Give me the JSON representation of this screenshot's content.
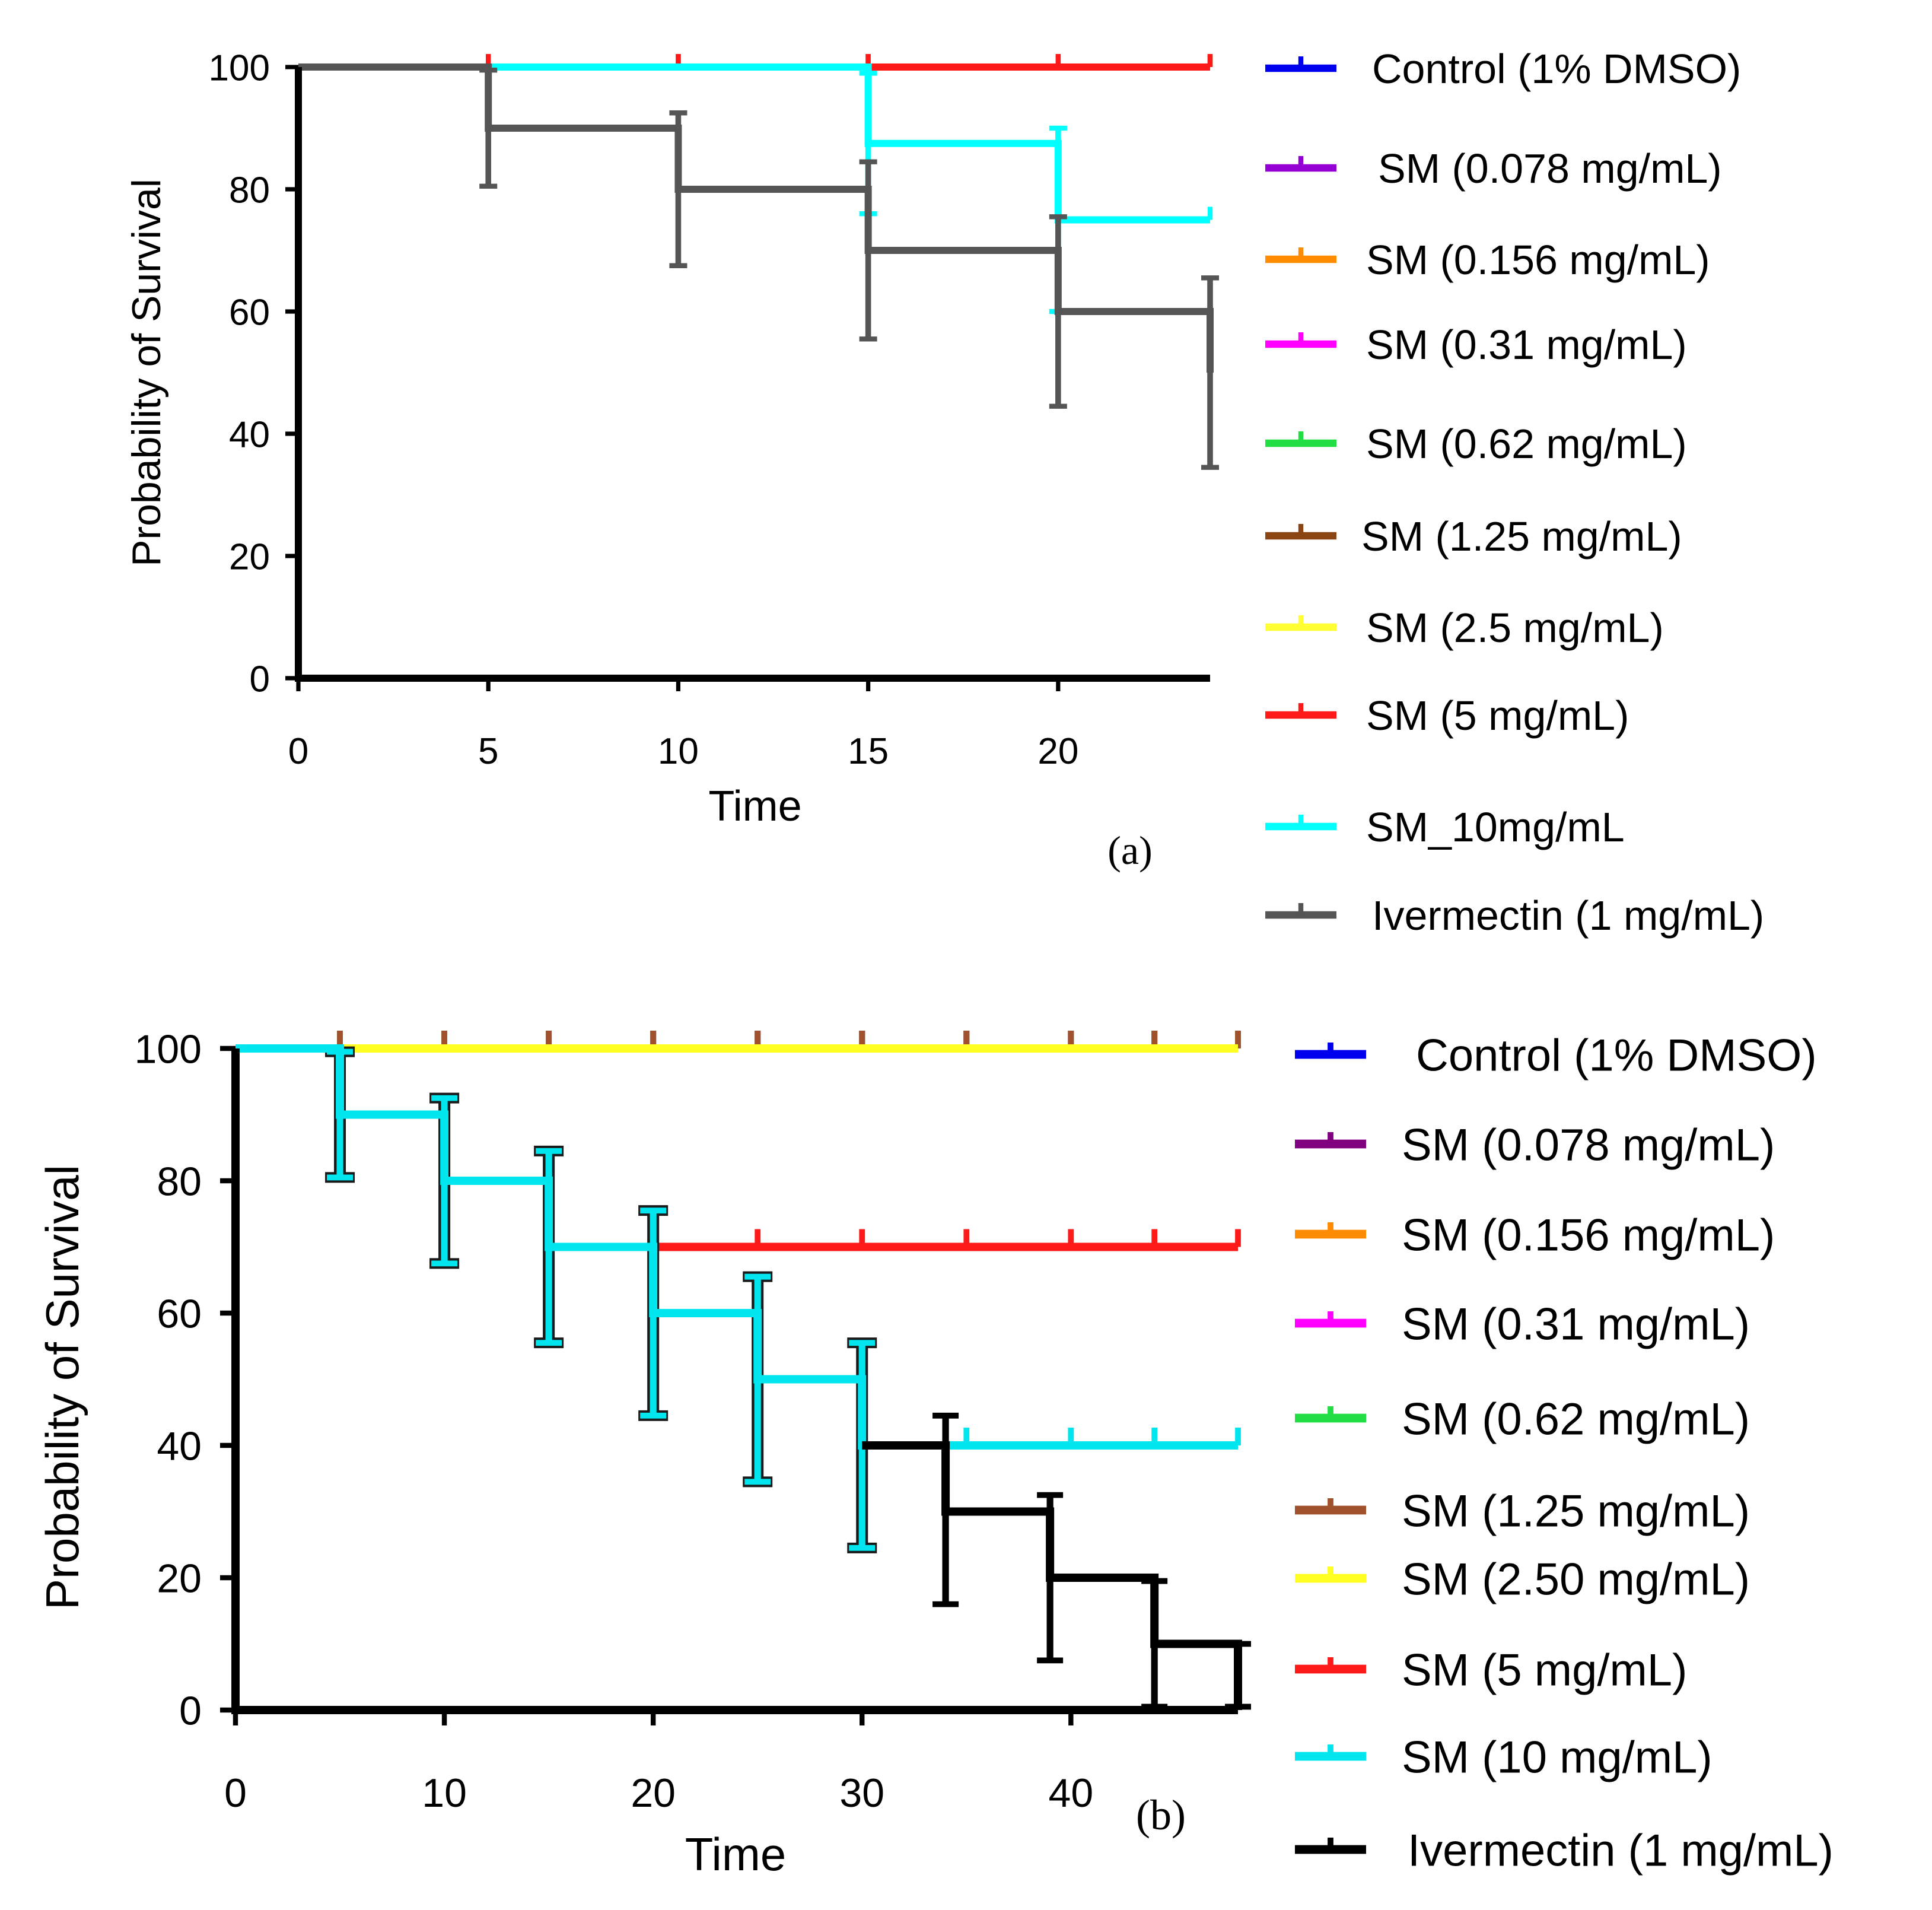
{
  "chart_data": [
    {
      "type": "line",
      "subtype": "kaplan-meier-step",
      "panel_label": "(a)",
      "xlabel": "Time",
      "ylabel": "Probability of Survival",
      "xlim": [
        0,
        24
      ],
      "ylim": [
        0,
        100
      ],
      "xticks": [
        0,
        5,
        10,
        15,
        20
      ],
      "yticks": [
        0,
        20,
        40,
        60,
        80,
        100
      ],
      "grid": false,
      "legend_position": "right",
      "series": [
        {
          "name": "Control (1% DMSO)",
          "color": "#0000ee",
          "x": [
            0,
            24
          ],
          "y": [
            100,
            100
          ],
          "censor_times": [
            5,
            10,
            15,
            20,
            24
          ]
        },
        {
          "name": "SM (0.078 mg/mL)",
          "color": "#9400d3",
          "x": [
            0,
            24
          ],
          "y": [
            100,
            100
          ],
          "censor_times": [
            5,
            10,
            15,
            20,
            24
          ]
        },
        {
          "name": "SM (0.156 mg/mL)",
          "color": "#ff8c00",
          "x": [
            0,
            24
          ],
          "y": [
            100,
            100
          ],
          "censor_times": [
            5,
            10,
            15,
            20,
            24
          ]
        },
        {
          "name": "SM (0.31 mg/mL)",
          "color": "#ff00ff",
          "x": [
            0,
            24
          ],
          "y": [
            100,
            100
          ],
          "censor_times": [
            5,
            10,
            15,
            20,
            24
          ]
        },
        {
          "name": "SM (0.62 mg/mL)",
          "color": "#22dd44",
          "x": [
            0,
            24
          ],
          "y": [
            100,
            100
          ],
          "censor_times": [
            5,
            10,
            15,
            20,
            24
          ]
        },
        {
          "name": "SM (1.25 mg/mL)",
          "color": "#8b4513",
          "x": [
            0,
            24
          ],
          "y": [
            100,
            100
          ],
          "censor_times": [
            5,
            10,
            15,
            20,
            24
          ]
        },
        {
          "name": "SM (2.5 mg/mL)",
          "color": "#ffff33",
          "x": [
            0,
            24
          ],
          "y": [
            100,
            100
          ],
          "censor_times": [
            5,
            10,
            15,
            20,
            24
          ]
        },
        {
          "name": "SM (5 mg/mL)",
          "color": "#ff1a1a",
          "x": [
            0,
            24
          ],
          "y": [
            100,
            100
          ],
          "censor_times": [
            5,
            10,
            15,
            20,
            24
          ]
        },
        {
          "name": "SM_10mg/mL",
          "color": "#00ffff",
          "x": [
            0,
            15,
            20,
            24
          ],
          "y": [
            100,
            87.5,
            75,
            75
          ],
          "error_bars": [
            {
              "x": 15,
              "low": 76,
              "high": 99
            },
            {
              "x": 20,
              "low": 60,
              "high": 90
            }
          ],
          "censor_times": [
            24
          ]
        },
        {
          "name": "Ivermectin (1 mg/mL)",
          "color": "#555555",
          "x": [
            0,
            5,
            10,
            15,
            20,
            24
          ],
          "y": [
            100,
            90,
            80,
            70,
            60,
            50
          ],
          "error_bars": [
            {
              "x": 5,
              "low": 80.5,
              "high": 99.5
            },
            {
              "x": 10,
              "low": 67.5,
              "high": 92.5
            },
            {
              "x": 15,
              "low": 55.5,
              "high": 84.5
            },
            {
              "x": 20,
              "low": 44.5,
              "high": 75.5
            },
            {
              "x": 24,
              "low": 34.5,
              "high": 65.5
            }
          ]
        }
      ]
    },
    {
      "type": "line",
      "subtype": "kaplan-meier-step",
      "panel_label": "(b)",
      "xlabel": "Time",
      "ylabel": "Probability of Survival",
      "xlim": [
        0,
        48
      ],
      "ylim": [
        0,
        100
      ],
      "xticks": [
        0,
        10,
        20,
        30,
        40
      ],
      "yticks": [
        0,
        20,
        40,
        60,
        80,
        100
      ],
      "grid": false,
      "legend_position": "right",
      "series": [
        {
          "name": "Control (1% DMSO)",
          "color": "#0000ee",
          "x": [
            0,
            48
          ],
          "y": [
            100,
            100
          ],
          "censor_times": [
            5,
            10,
            15,
            20,
            25,
            30,
            35,
            40,
            44,
            48
          ]
        },
        {
          "name": "SM (0.078 mg/mL)",
          "color": "#800080",
          "x": [
            0,
            48
          ],
          "y": [
            100,
            100
          ],
          "censor_times": [
            5,
            10,
            15,
            20,
            25,
            30,
            35,
            40,
            44,
            48
          ]
        },
        {
          "name": "SM (0.156 mg/mL)",
          "color": "#ff8c00",
          "x": [
            0,
            48
          ],
          "y": [
            100,
            100
          ],
          "censor_times": [
            5,
            10,
            15,
            20,
            25,
            30,
            35,
            40,
            44,
            48
          ]
        },
        {
          "name": "SM (0.31 mg/mL)",
          "color": "#ff00ff",
          "x": [
            0,
            48
          ],
          "y": [
            100,
            100
          ],
          "censor_times": [
            5,
            10,
            15,
            20,
            25,
            30,
            35,
            40,
            44,
            48
          ]
        },
        {
          "name": "SM (0.62 mg/mL)",
          "color": "#22dd44",
          "x": [
            0,
            48
          ],
          "y": [
            100,
            100
          ],
          "censor_times": [
            5,
            10,
            15,
            20,
            25,
            30,
            35,
            40,
            44,
            48
          ]
        },
        {
          "name": "SM (1.25 mg/mL)",
          "color": "#a0522d",
          "x": [
            0,
            48
          ],
          "y": [
            100,
            100
          ],
          "censor_times": [
            5,
            10,
            15,
            20,
            25,
            30,
            35,
            40,
            44,
            48
          ]
        },
        {
          "name": "SM (2.50 mg/mL)",
          "color": "#ffff22",
          "x": [
            0,
            48
          ],
          "y": [
            100,
            100
          ],
          "censor_times": []
        },
        {
          "name": "SM (5 mg/mL)",
          "color": "#ff1a1a",
          "x": [
            0,
            5,
            10,
            15,
            20,
            48
          ],
          "y": [
            100,
            90,
            80,
            70,
            70,
            70
          ],
          "error_bars": [
            {
              "x": 5,
              "low": 80.5,
              "high": 99.5
            },
            {
              "x": 10,
              "low": 67.5,
              "high": 92.5
            },
            {
              "x": 15,
              "low": 55.5,
              "high": 84.5
            }
          ],
          "censor_times": [
            25,
            30,
            35,
            40,
            44,
            48
          ]
        },
        {
          "name": "SM (10 mg/mL)",
          "color": "#00e5ee",
          "x": [
            0,
            5,
            10,
            15,
            20,
            25,
            30,
            48
          ],
          "y": [
            100,
            90,
            80,
            70,
            60,
            50,
            40,
            40
          ],
          "error_bars": [
            {
              "x": 5,
              "low": 80.5,
              "high": 99.5
            },
            {
              "x": 10,
              "low": 67.5,
              "high": 92.5
            },
            {
              "x": 15,
              "low": 55.5,
              "high": 84.5
            },
            {
              "x": 20,
              "low": 44.5,
              "high": 75.5
            },
            {
              "x": 25,
              "low": 34.5,
              "high": 65.5
            },
            {
              "x": 30,
              "low": 24.5,
              "high": 55.5
            }
          ],
          "censor_times": [
            35,
            40,
            44,
            48
          ]
        },
        {
          "name": "Ivermectin (1 mg/mL)",
          "color": "#000000",
          "x": [
            30,
            34,
            39,
            44,
            48
          ],
          "y": [
            40,
            30,
            20,
            10,
            0
          ],
          "error_bars": [
            {
              "x": 34,
              "low": 16,
              "high": 44.5
            },
            {
              "x": 39,
              "low": 7.5,
              "high": 32.5
            },
            {
              "x": 44,
              "low": 0.5,
              "high": 19.5
            },
            {
              "x": 48,
              "low": 0.5,
              "high": 10
            }
          ]
        }
      ]
    }
  ]
}
